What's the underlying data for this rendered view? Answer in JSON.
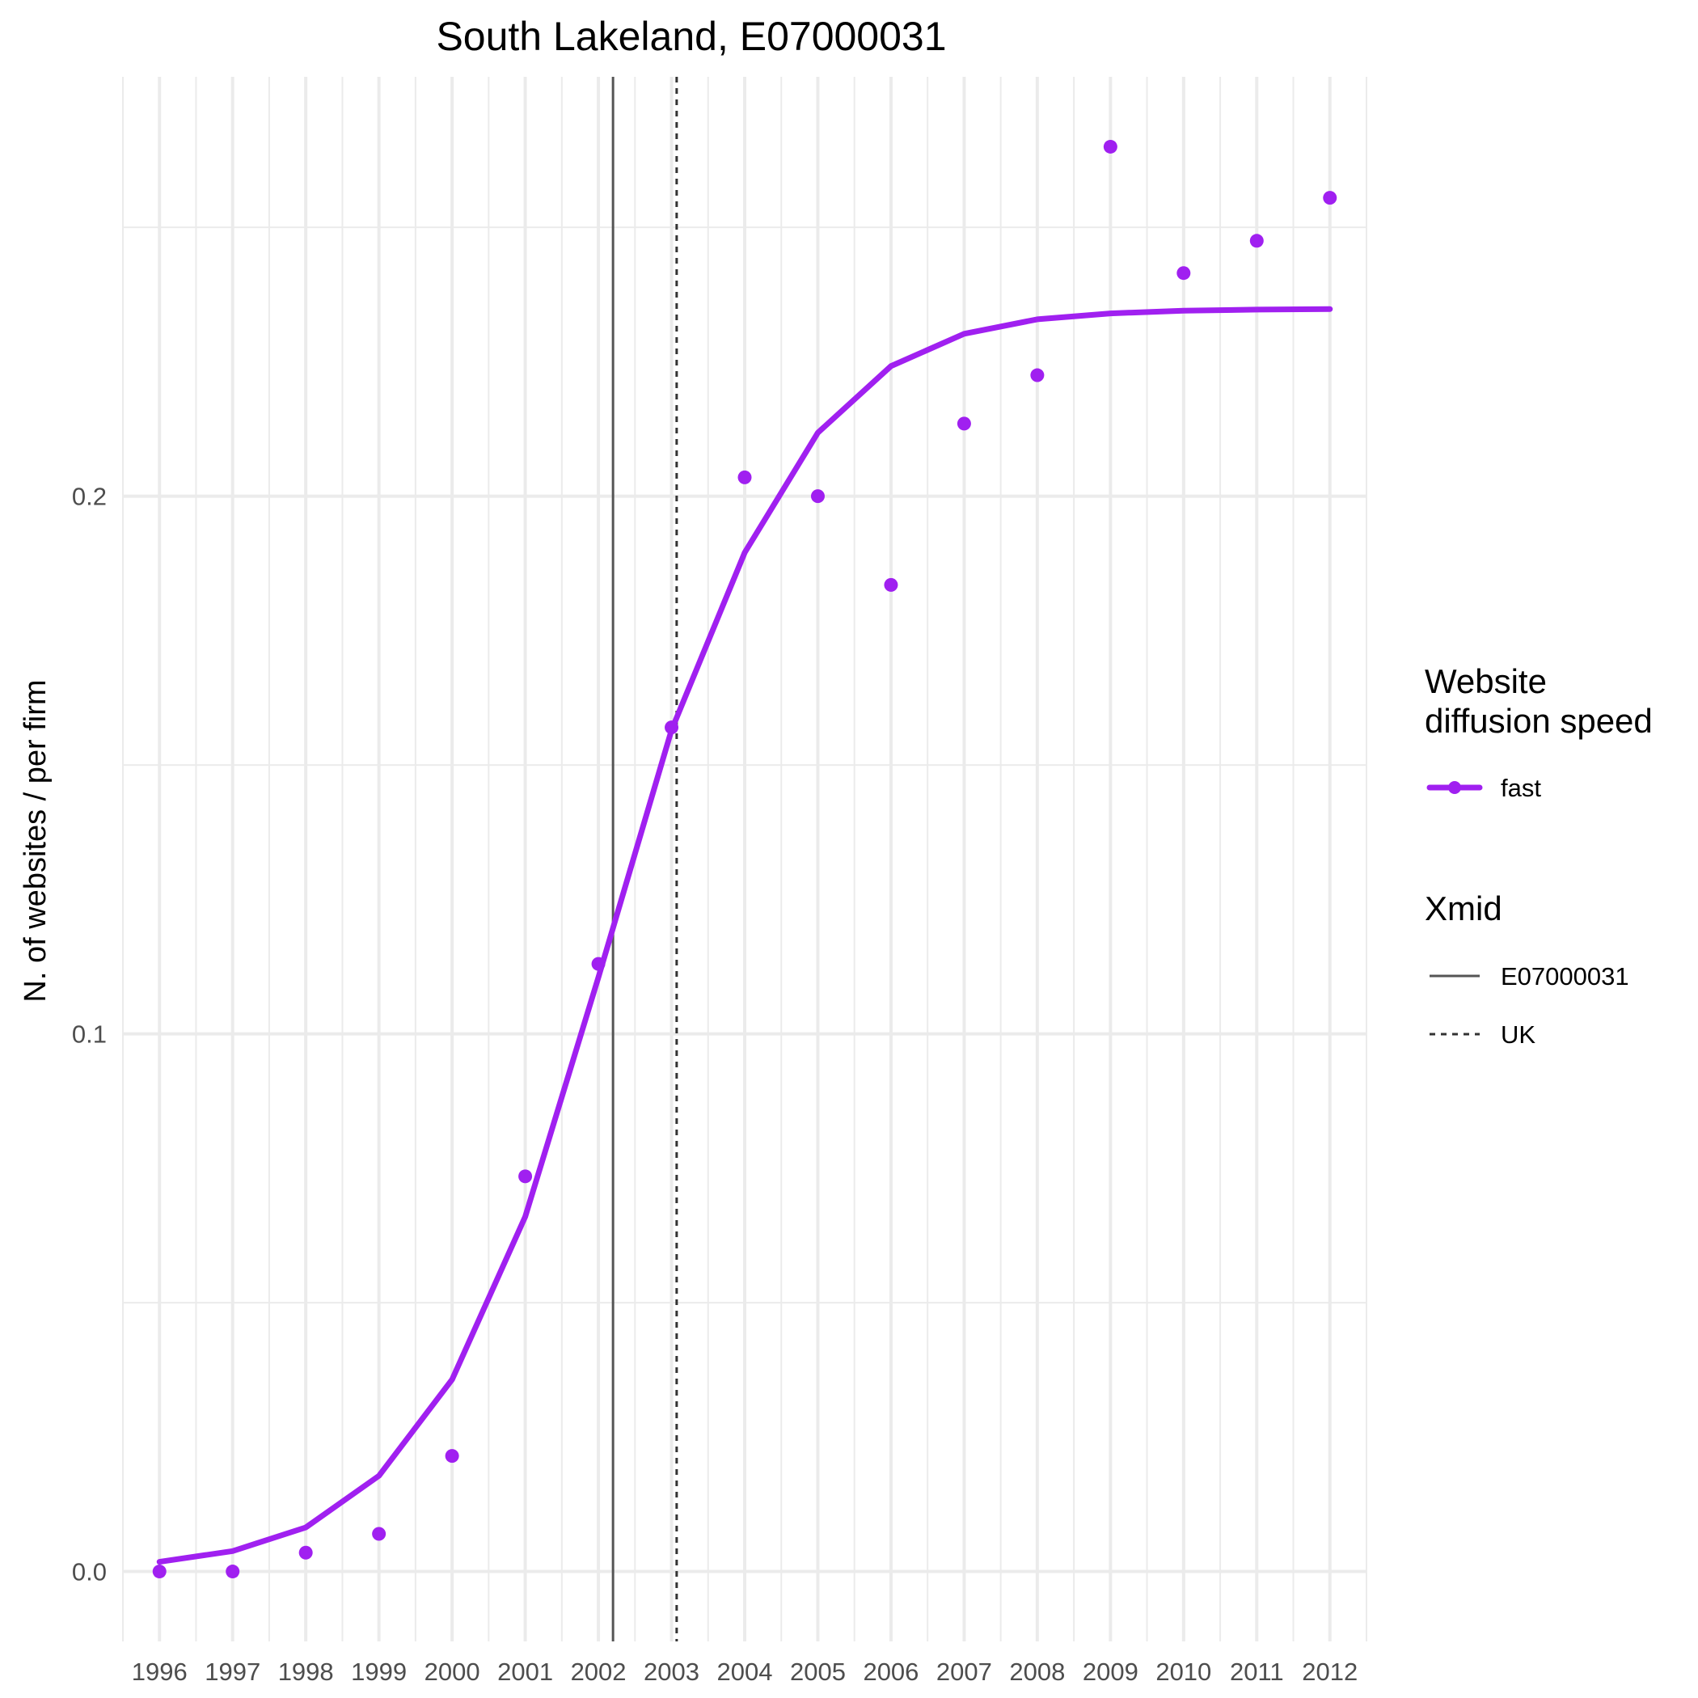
{
  "chart_data": {
    "type": "line",
    "title": "South Lakeland, E07000031",
    "ylabel": "N. of websites / per firm",
    "xlabel": "",
    "x": [
      1996,
      1997,
      1998,
      1999,
      2000,
      2001,
      2002,
      2003,
      2004,
      2005,
      2006,
      2007,
      2008,
      2009,
      2010,
      2011,
      2012
    ],
    "x_tick_labels": [
      "1996",
      "1997",
      "1998",
      "1999",
      "2000",
      "2001",
      "2002",
      "2003",
      "2004",
      "2005",
      "2006",
      "2007",
      "2008",
      "2009",
      "2010",
      "2011",
      "2012"
    ],
    "y_ticks": [
      0.0,
      0.1,
      0.2
    ],
    "y_tick_labels": [
      "0.0",
      "0.1",
      "0.2"
    ],
    "xlim": [
      1995.5,
      2012.5
    ],
    "ylim": [
      -0.013,
      0.278
    ],
    "grid": true,
    "series": [
      {
        "name": "fast",
        "color": "#a020f0",
        "observed": [
          0.0,
          0.0,
          0.0035,
          0.007,
          0.0215,
          0.0735,
          0.113,
          0.157,
          0.2035,
          0.2,
          0.1835,
          0.2135,
          0.2225,
          0.265,
          0.2415,
          0.2475,
          0.2555
        ],
        "fitted": [
          0.0018,
          0.0038,
          0.0082,
          0.0178,
          0.0357,
          0.066,
          0.1105,
          0.1565,
          0.1895,
          0.2118,
          0.2242,
          0.2302,
          0.2329,
          0.234,
          0.2345,
          0.2347,
          0.2348
        ]
      }
    ],
    "vlines": [
      {
        "label": "E07000031",
        "x": 2002.2,
        "linetype": "solid",
        "color": "#555555"
      },
      {
        "label": "UK",
        "x": 2003.07,
        "linetype": "dashed",
        "color": "#333333"
      }
    ],
    "legend": {
      "placement": "right",
      "speed_title_lines": [
        "Website",
        "diffusion speed"
      ],
      "speed_items": [
        "fast"
      ],
      "xmid_title": "Xmid",
      "xmid_items": [
        "E07000031",
        "UK"
      ]
    }
  }
}
